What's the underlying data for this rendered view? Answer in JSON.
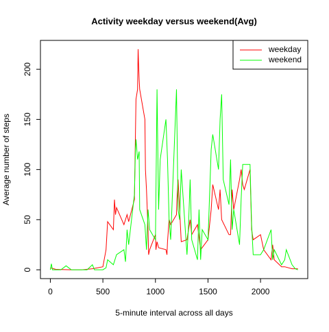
{
  "chart_data": {
    "type": "line",
    "title": "Activity weekday versus weekend(Avg)",
    "xlabel": "5-minute interval across all days",
    "ylabel": "Average number of steps",
    "xlim": [
      -94.2,
      2449.2
    ],
    "ylim": [
      -8.8,
      228.8
    ],
    "xticks": [
      0,
      500,
      1000,
      1500,
      2000
    ],
    "yticks": [
      0,
      50,
      100,
      150,
      200
    ],
    "legend": "topright",
    "series": [
      {
        "name": "weekday",
        "color": "#ff0000",
        "x": [
          0,
          50,
          100,
          200,
          300,
          400,
          500,
          530,
          545,
          600,
          610,
          620,
          630,
          700,
          730,
          745,
          800,
          815,
          830,
          835,
          840,
          845,
          850,
          900,
          905,
          915,
          930,
          935,
          945,
          1000,
          1005,
          1015,
          1030,
          1100,
          1110,
          1115,
          1130,
          1145,
          1200,
          1205,
          1215,
          1230,
          1245,
          1300,
          1330,
          1345,
          1400,
          1430,
          1500,
          1530,
          1545,
          1600,
          1615,
          1630,
          1700,
          1715,
          1730,
          1745,
          1800,
          1815,
          1830,
          1845,
          1900,
          1915,
          1930,
          2000,
          2030,
          2100,
          2115,
          2130,
          2200,
          2230,
          2300,
          2355
        ],
        "values": [
          2,
          0.5,
          0.3,
          0,
          0,
          1,
          3,
          20,
          48,
          40,
          70,
          55,
          62,
          45,
          55,
          48,
          70,
          170,
          180,
          220,
          205,
          190,
          180,
          150,
          100,
          80,
          40,
          15,
          20,
          35,
          20,
          28,
          22,
          20,
          15,
          28,
          50,
          45,
          55,
          70,
          90,
          60,
          28,
          30,
          50,
          35,
          45,
          20,
          30,
          60,
          85,
          60,
          80,
          50,
          35,
          35,
          80,
          60,
          90,
          100,
          85,
          80,
          100,
          40,
          30,
          35,
          20,
          10,
          25,
          10,
          3,
          3,
          1,
          1
        ]
      },
      {
        "name": "weekend",
        "color": "#00ff00",
        "x": [
          0,
          10,
          20,
          100,
          150,
          200,
          350,
          400,
          420,
          500,
          530,
          545,
          600,
          630,
          700,
          715,
          730,
          745,
          800,
          810,
          815,
          830,
          845,
          850,
          900,
          915,
          930,
          945,
          1000,
          1015,
          1030,
          1045,
          1100,
          1115,
          1130,
          1145,
          1200,
          1215,
          1230,
          1245,
          1300,
          1315,
          1330,
          1345,
          1400,
          1415,
          1430,
          1445,
          1500,
          1530,
          1545,
          1600,
          1615,
          1630,
          1645,
          1700,
          1715,
          1730,
          1745,
          1800,
          1815,
          1830,
          1845,
          1900,
          1915,
          1930,
          2000,
          2030,
          2100,
          2115,
          2130,
          2200,
          2230,
          2245,
          2300,
          2330,
          2355
        ],
        "values": [
          0,
          6,
          0,
          0,
          4,
          0,
          0,
          5,
          0,
          0,
          2,
          10,
          5,
          15,
          20,
          8,
          40,
          25,
          75,
          120,
          130,
          110,
          118,
          60,
          45,
          20,
          60,
          40,
          30,
          180,
          60,
          110,
          150,
          110,
          50,
          30,
          180,
          60,
          50,
          100,
          15,
          45,
          90,
          30,
          10,
          60,
          10,
          40,
          30,
          120,
          135,
          100,
          150,
          175,
          90,
          65,
          110,
          40,
          60,
          25,
          70,
          105,
          105,
          105,
          45,
          15,
          15,
          20,
          40,
          10,
          20,
          5,
          10,
          20,
          5,
          1,
          0
        ]
      }
    ]
  }
}
